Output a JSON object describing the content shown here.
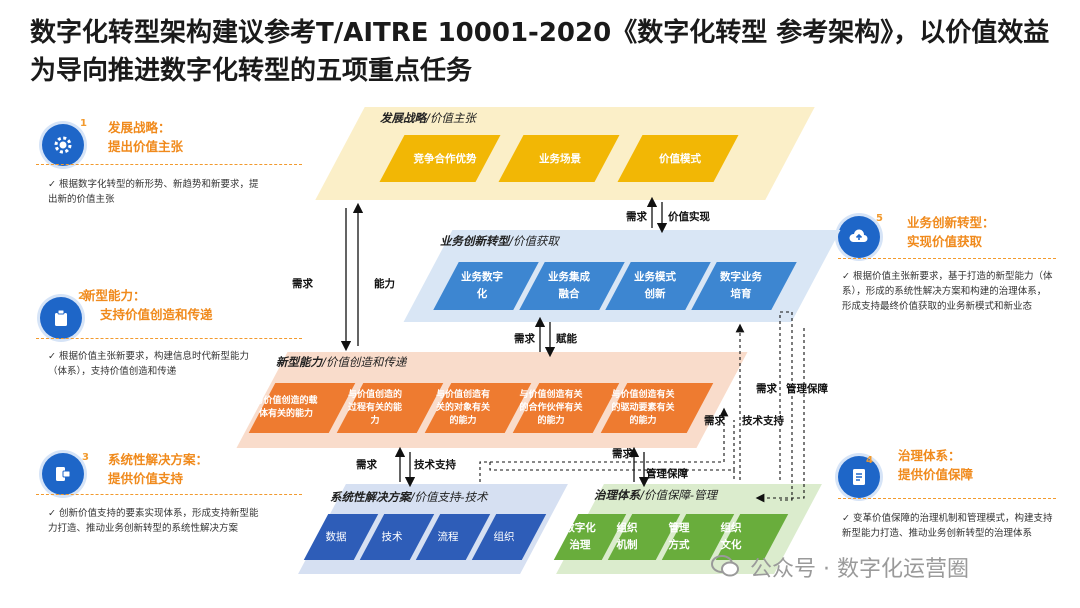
{
  "title": "数字化转型架构建议参考T/AITRE 10001-2020《数字化转型 参考架构》，以价值效益为导向推进数字化转型的五项重点任务",
  "annotations": [
    {
      "num": "1",
      "title1": "发展战略：",
      "title2": "提出价值主张",
      "desc": "根据数字化转型的新形势、新趋势和新要求，提出新的价值主张",
      "icon": "gear-icon"
    },
    {
      "num": "2",
      "title1": "新型能力：",
      "title2": "支持价值创造和传递",
      "desc": "根据价值主张新要求，构建信息时代新型能力（体系），支持价值创造和传递",
      "icon": "clipboard-icon"
    },
    {
      "num": "3",
      "title1": "系统性解决方案：",
      "title2": "提供价值支持",
      "desc": "创新价值支持的要素实现体系，形成支持新型能力打造、推动业务创新转型的系统性解决方案",
      "icon": "puzzle-icon"
    },
    {
      "num": "4",
      "title1": "治理体系：",
      "title2": "提供价值保障",
      "desc": "变革价值保障的治理机制和管理模式，构建支持新型能力打造、推动业务创新转型的治理体系",
      "icon": "document-icon"
    },
    {
      "num": "5",
      "title1": "业务创新转型：",
      "title2": "实现价值获取",
      "desc": "根据价值主张新要求，基于打造的新型能力（体系），形成的系统性解决方案和构建的治理体系，形成支持最终价值获取的业务新模式和新业态",
      "icon": "cloud-upload-icon"
    }
  ],
  "bands": {
    "strategy": {
      "label": "发展战略",
      "sub": "/价值主张",
      "boxes": [
        "竞争合作优势",
        "业务场景",
        "价值模式"
      ]
    },
    "business": {
      "label": "业务创新转型",
      "sub": "/价值获取",
      "boxes": [
        "业务数字化",
        "业务集成融合",
        "业务模式创新",
        "数字业务培育"
      ]
    },
    "capability": {
      "label": "新型能力",
      "sub": "/价值创造和传递",
      "boxes": [
        "与价值创造的载体有关的能力",
        "与价值创造的过程有关的能力",
        "与价值创造有关的对象有关的能力",
        "与价值创造有关的合作伙伴有关的能力",
        "与价值创造有关的驱动要素有关的能力"
      ]
    },
    "solution": {
      "label": "系统性解决方案",
      "sub": "/价值支持-技术",
      "boxes": [
        "数据",
        "技术",
        "流程",
        "组织"
      ]
    },
    "governance": {
      "label": "治理体系",
      "sub": "/价值保障-管理",
      "boxes": [
        "数字化治理",
        "组织机制",
        "管理方式",
        "组织文化"
      ]
    }
  },
  "flow_labels": {
    "demand": "需求",
    "capability": "能力",
    "value_realize": "价值实现",
    "empower": "赋能",
    "tech_support": "技术支持",
    "mgmt_guarantee": "管理保障"
  },
  "colors": {
    "strategy_band": "#fbefc8",
    "strategy_box": "#f2b705",
    "business_band": "#d9e6f5",
    "business_box": "#3d86d1",
    "capability_band": "#f9dccb",
    "capability_box": "#ee7b30",
    "solution_band": "#d6e0f2",
    "solution_box": "#2e5db8",
    "governance_band": "#dbeccd",
    "governance_box": "#69ad3c",
    "accent": "#f08a1c",
    "icon": "#1e66c8"
  },
  "watermark": "公众号 · 数字化运营圈"
}
